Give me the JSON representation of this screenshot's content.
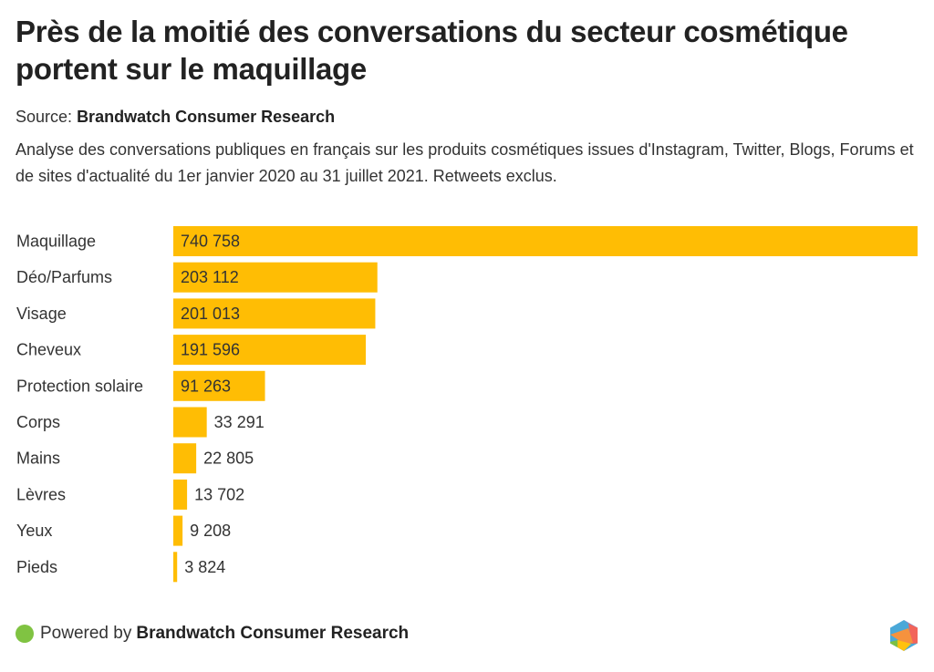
{
  "header": {
    "title": "Près de la moitié des conversations du secteur cosmétique portent sur le maquillage",
    "source_label": "Source:",
    "source_name": "Brandwatch Consumer Research",
    "description": "Analyse des conversations publiques en français sur les produits cosmétiques issues d'Instagram, Twitter, Blogs, Forums et de sites d'actualité du 1er janvier 2020 au 31 juillet 2021. Retweets exclus."
  },
  "footer": {
    "powered_label": "Powered by",
    "brand_name": "Brandwatch Consumer Research",
    "logo_icon": "brandwatch-hexagon-logo"
  },
  "colors": {
    "bar": "#ffbd04",
    "label_text": "#333333",
    "status_dot": "#80c342"
  },
  "chart_data": {
    "type": "bar",
    "orientation": "horizontal",
    "title": "Près de la moitié des conversations du secteur cosmétique portent sur le maquillage",
    "xlabel": "",
    "ylabel": "",
    "grid": false,
    "legend": "none",
    "xlim": [
      0,
      740758
    ],
    "categories": [
      "Maquillage",
      "Déo/Parfums",
      "Visage",
      "Cheveux",
      "Protection solaire",
      "Corps",
      "Mains",
      "Lèvres",
      "Yeux",
      "Pieds"
    ],
    "values": [
      740758,
      203112,
      201013,
      191596,
      91263,
      33291,
      22805,
      13702,
      9208,
      3824
    ],
    "value_labels": [
      "740 758",
      "203 112",
      "201 013",
      "191 596",
      "91 263",
      "33 291",
      "22 805",
      "13 702",
      "9 208",
      "3 824"
    ]
  }
}
